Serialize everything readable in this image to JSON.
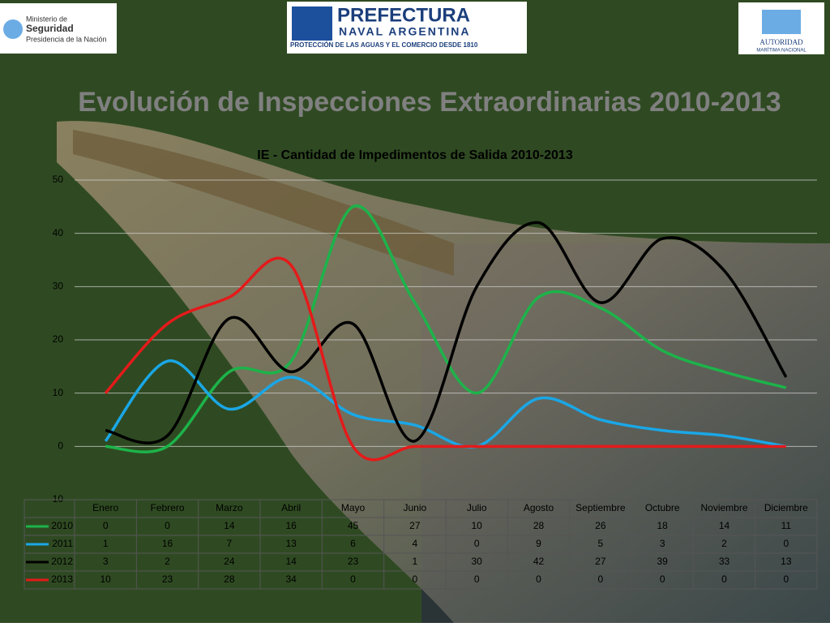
{
  "header": {
    "logo_left": {
      "line1": "Ministerio de",
      "line2": "Seguridad",
      "line3": "Presidencia de la Nación"
    },
    "logo_center": {
      "line1": "PREFECTURA",
      "line2": "NAVAL ARGENTINA",
      "line3": "PROTECCIÓN DE LAS AGUAS Y EL COMERCIO DESDE 1810"
    },
    "logo_right": {
      "line1": "AUTORIDAD",
      "line2": "MARÍTIMA NACIONAL"
    },
    "title": "Evolución de Inspecciones Extraordinarias 2010-2013"
  },
  "chart_data": {
    "type": "line",
    "smooth": true,
    "title": "IE - Cantidad de Impedimentos de Salida 2010-2013",
    "categories": [
      "Enero",
      "Febrero",
      "Marzo",
      "Abril",
      "Mayo",
      "Junio",
      "Julio",
      "Agosto",
      "Septiembre",
      "Octubre",
      "Noviembre",
      "Diciembre"
    ],
    "series": [
      {
        "name": "2010",
        "color": "#1db34a",
        "values": [
          0,
          0,
          14,
          16,
          45,
          27,
          10,
          28,
          26,
          18,
          14,
          11
        ]
      },
      {
        "name": "2011",
        "color": "#1aa7e6",
        "values": [
          1,
          16,
          7,
          13,
          6,
          4,
          0,
          9,
          5,
          3,
          2,
          0
        ]
      },
      {
        "name": "2012",
        "color": "#000000",
        "values": [
          3,
          2,
          24,
          14,
          23,
          1,
          30,
          42,
          27,
          39,
          33,
          13
        ]
      },
      {
        "name": "2013",
        "color": "#e41a1a",
        "values": [
          10,
          23,
          28,
          34,
          0,
          0,
          0,
          0,
          0,
          0,
          0,
          0
        ]
      }
    ],
    "ylim": [
      -10,
      50
    ],
    "yticks": [
      -10,
      0,
      10,
      20,
      30,
      40,
      50
    ],
    "grid": true
  }
}
